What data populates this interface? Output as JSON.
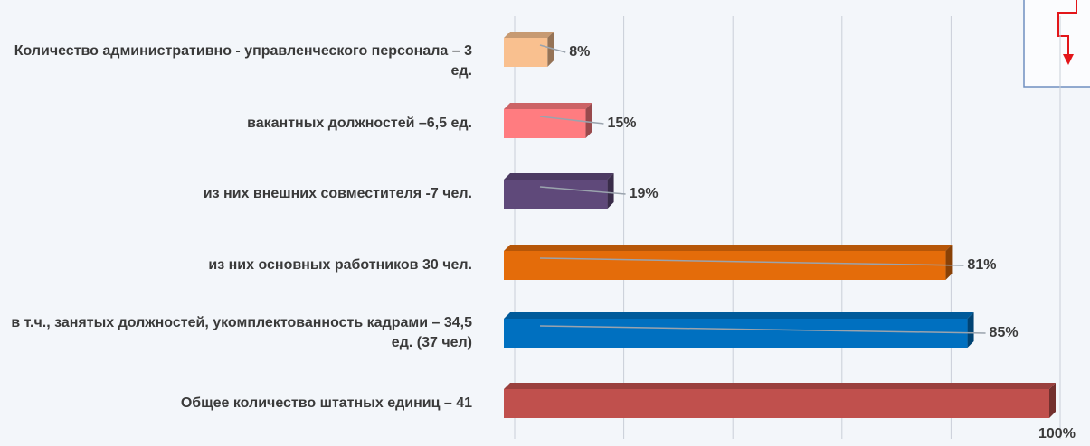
{
  "chart_data": {
    "type": "bar",
    "orientation": "horizontal",
    "categories": [
      "Количество административно - управленческого персонала – 3 ед.",
      "вакантных должностей –6,5 ед.",
      "из них внешних совместителя -7 чел.",
      "из них основных работников 30 чел.",
      "в т.ч.,  занятых должностей, укомплектованность кадрами – 34,5 ед. (37 чел)",
      "Общее количество штатных единиц – 41"
    ],
    "values": [
      8,
      15,
      19,
      81,
      85,
      100
    ],
    "value_labels": [
      "8%",
      "15%",
      "19%",
      "81%",
      "85%",
      "100%"
    ],
    "colors": [
      "#f9c08f",
      "#ff7c80",
      "#5f497a",
      "#e46c0a",
      "#0070c0",
      "#c0504d"
    ],
    "xlim": [
      0,
      100
    ],
    "xticks": [
      0,
      20,
      40,
      60,
      80,
      100
    ],
    "grid": true
  }
}
